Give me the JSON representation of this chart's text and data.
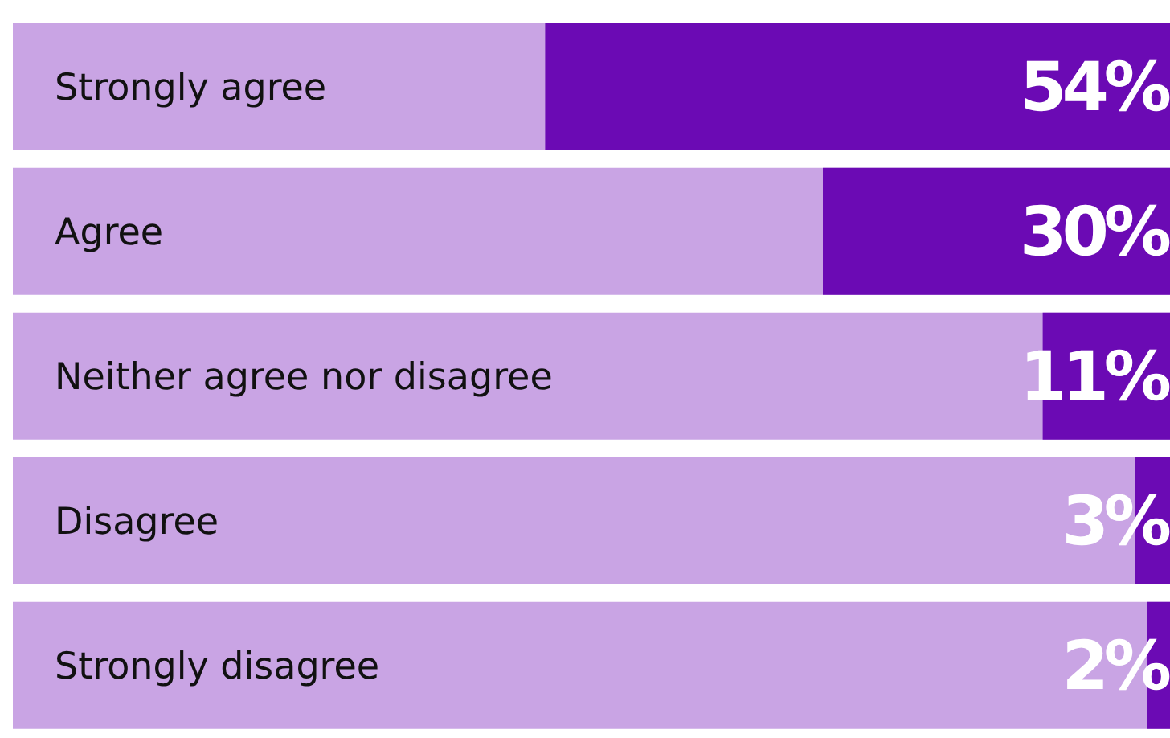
{
  "chart_data": {
    "type": "bar",
    "orientation": "horizontal",
    "categories": [
      "Strongly agree",
      "Agree",
      "Neither agree nor disagree",
      "Disagree",
      "Strongly disagree"
    ],
    "values": [
      54,
      30,
      11,
      3,
      2
    ],
    "value_labels": [
      "54%",
      "30%",
      "11%",
      "3%",
      "2%"
    ],
    "color": "#6b0ab4"
  }
}
